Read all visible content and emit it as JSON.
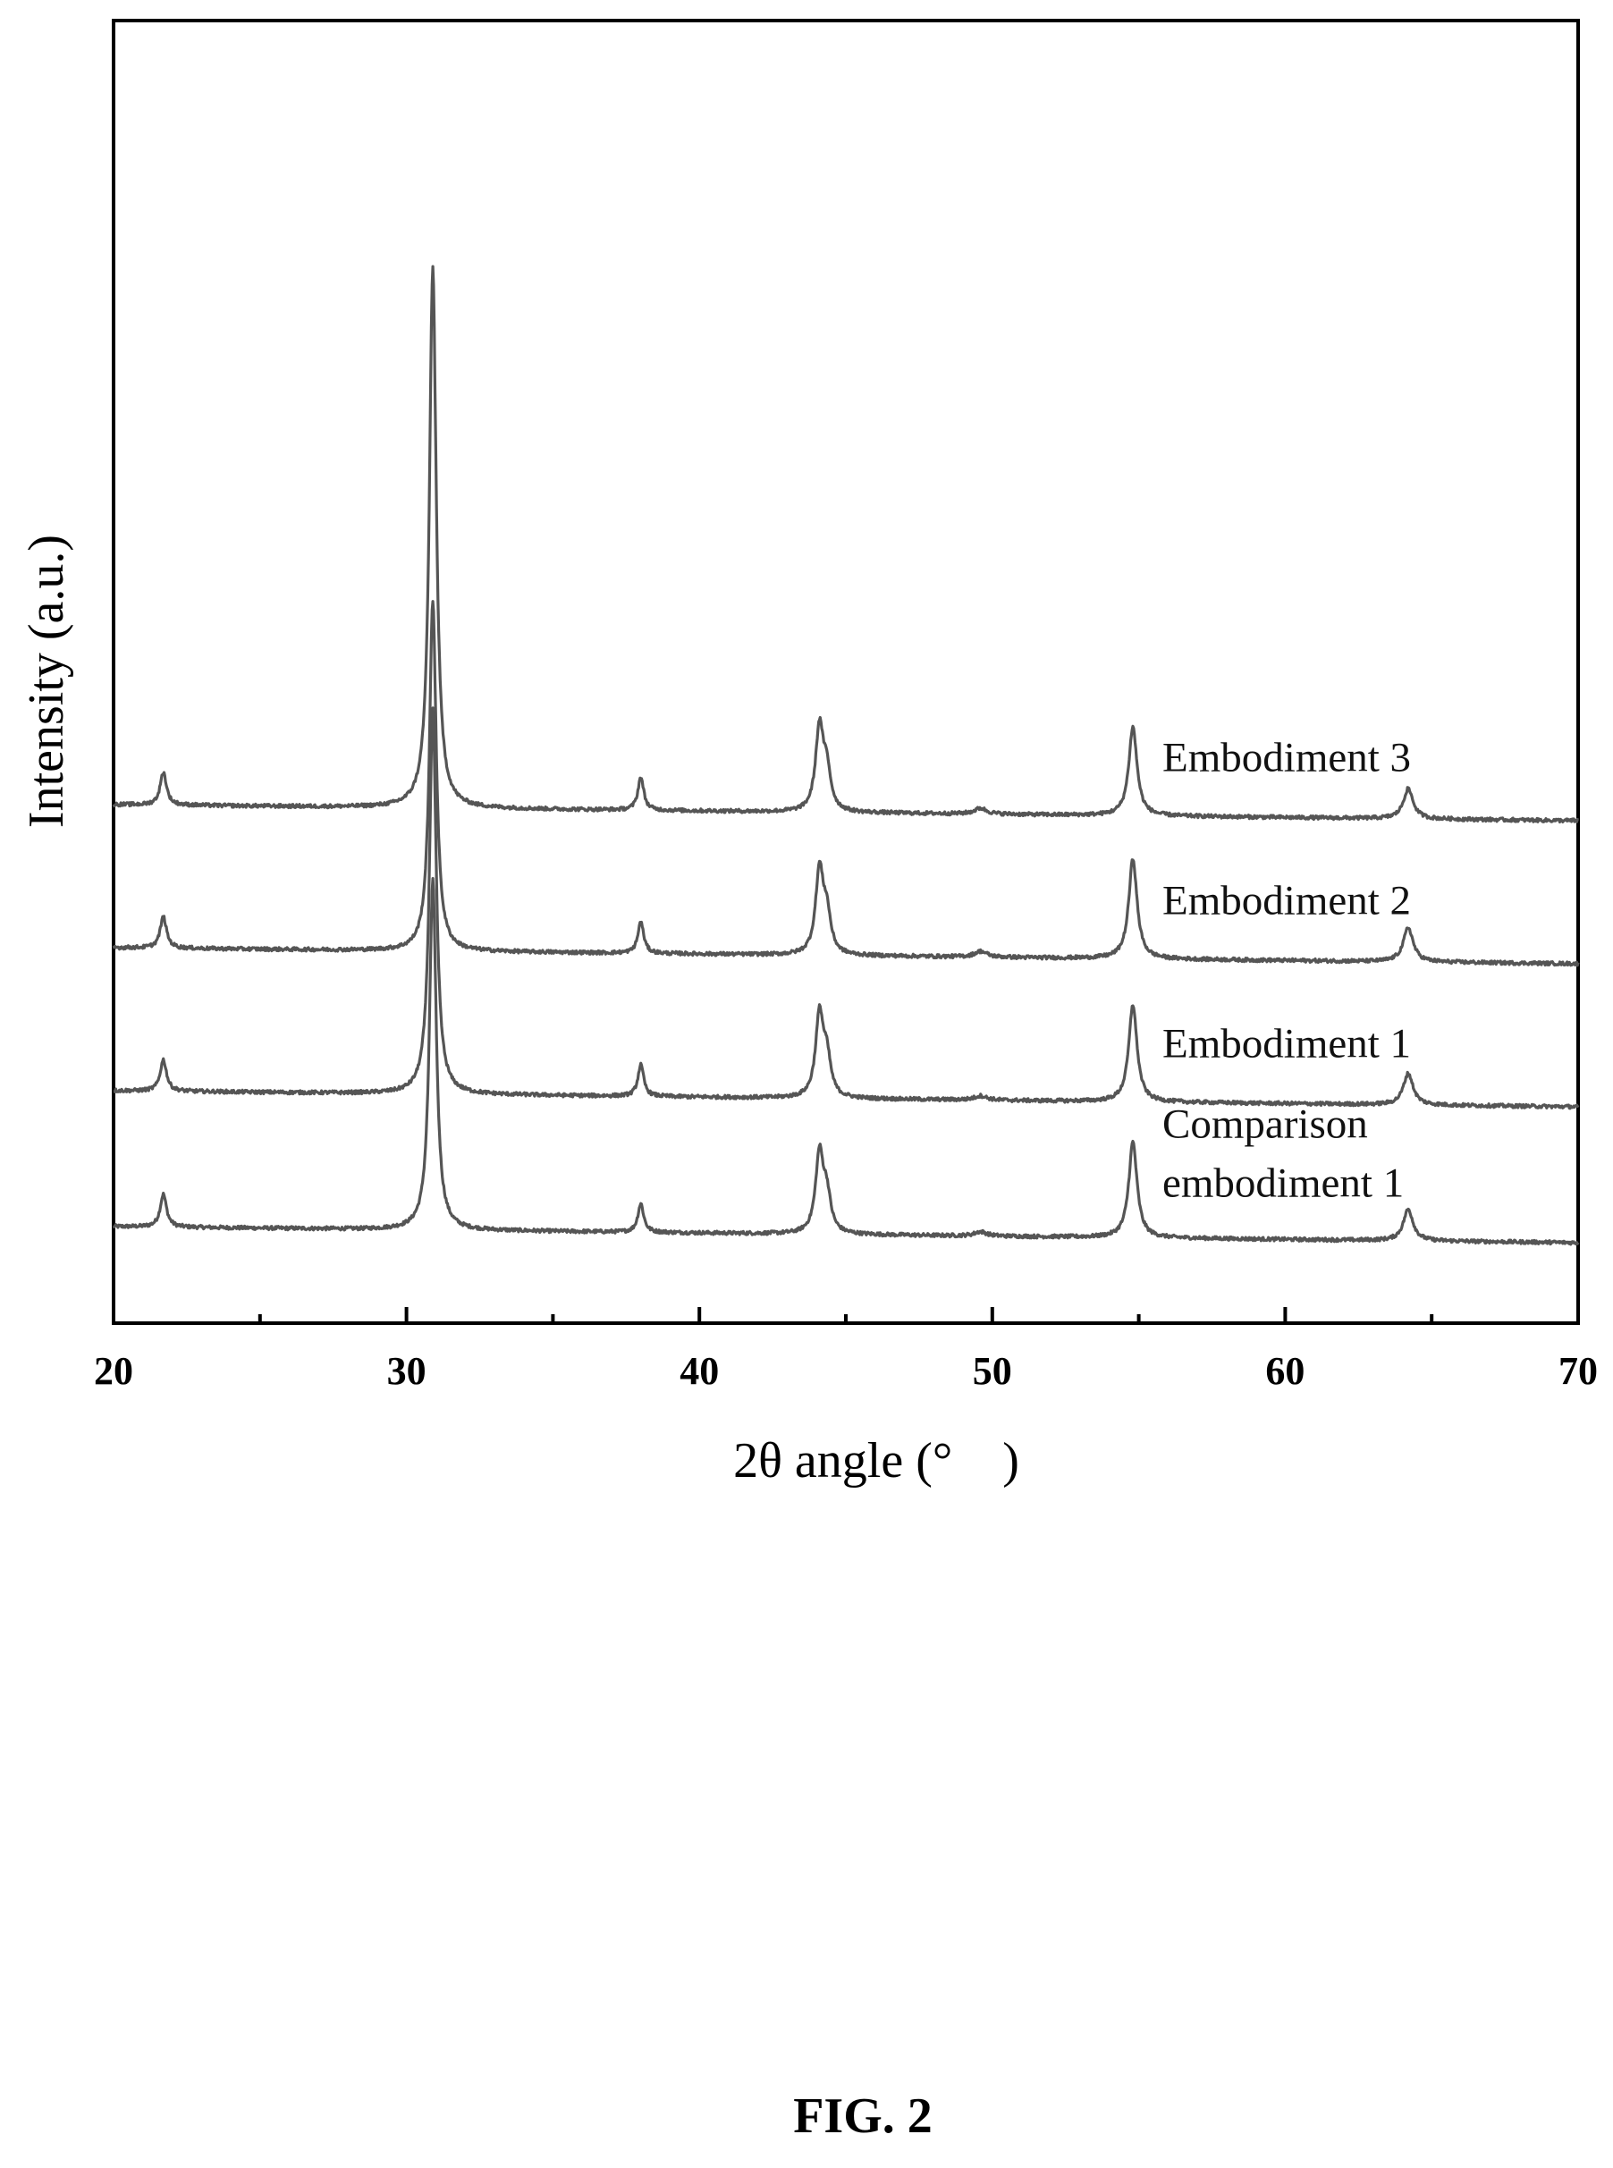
{
  "chart_data": {
    "type": "line",
    "xlabel": "2θ angle (°　)",
    "ylabel": "Intensity (a.u.)",
    "xlim": [
      20,
      70
    ],
    "x_ticks": [
      "20",
      "30",
      "40",
      "50",
      "60",
      "70"
    ],
    "y_ticks": [],
    "grid": false,
    "legend": "inline labels at right of each trace",
    "stacked_offset": true,
    "peak_positions_deg": [
      21.7,
      30.9,
      38.0,
      44.1,
      49.6,
      54.8,
      64.2
    ],
    "series": [
      {
        "name": "Comparison embodiment 1",
        "label_lines": [
          "Comparison",
          "embodiment 1"
        ],
        "baseline": 0.0,
        "peaks": [
          {
            "x": 21.7,
            "height": 0.23
          },
          {
            "x": 30.9,
            "height": 2.45
          },
          {
            "x": 38.0,
            "height": 0.2
          },
          {
            "x": 44.1,
            "height": 0.55
          },
          {
            "x": 49.6,
            "height": 0.03
          },
          {
            "x": 54.8,
            "height": 0.67
          },
          {
            "x": 64.2,
            "height": 0.22
          }
        ]
      },
      {
        "name": "Embodiment 1",
        "label_lines": [
          "Embodiment 1"
        ],
        "baseline": 0.95,
        "peaks": [
          {
            "x": 21.7,
            "height": 0.22
          },
          {
            "x": 30.9,
            "height": 2.7
          },
          {
            "x": 38.0,
            "height": 0.22
          },
          {
            "x": 44.1,
            "height": 0.57
          },
          {
            "x": 49.6,
            "height": 0.03
          },
          {
            "x": 54.8,
            "height": 0.68
          },
          {
            "x": 64.2,
            "height": 0.22
          }
        ]
      },
      {
        "name": "Embodiment 2",
        "label_lines": [
          "Embodiment 2"
        ],
        "baseline": 1.95,
        "peaks": [
          {
            "x": 21.7,
            "height": 0.22
          },
          {
            "x": 30.9,
            "height": 2.45
          },
          {
            "x": 38.0,
            "height": 0.22
          },
          {
            "x": 44.1,
            "height": 0.58
          },
          {
            "x": 49.6,
            "height": 0.04
          },
          {
            "x": 54.8,
            "height": 0.7
          },
          {
            "x": 64.2,
            "height": 0.24
          }
        ]
      },
      {
        "name": "Embodiment 3",
        "label_lines": [
          "Embodiment 3"
        ],
        "baseline": 2.95,
        "peaks": [
          {
            "x": 21.7,
            "height": 0.23
          },
          {
            "x": 30.9,
            "height": 3.78
          },
          {
            "x": 38.0,
            "height": 0.23
          },
          {
            "x": 44.1,
            "height": 0.58
          },
          {
            "x": 49.6,
            "height": 0.04
          },
          {
            "x": 54.8,
            "height": 0.62
          },
          {
            "x": 64.2,
            "height": 0.21
          }
        ]
      }
    ]
  },
  "caption": "FIG. 2",
  "colors": {
    "trace": "#555555",
    "axis": "#000000",
    "background": "#ffffff"
  }
}
